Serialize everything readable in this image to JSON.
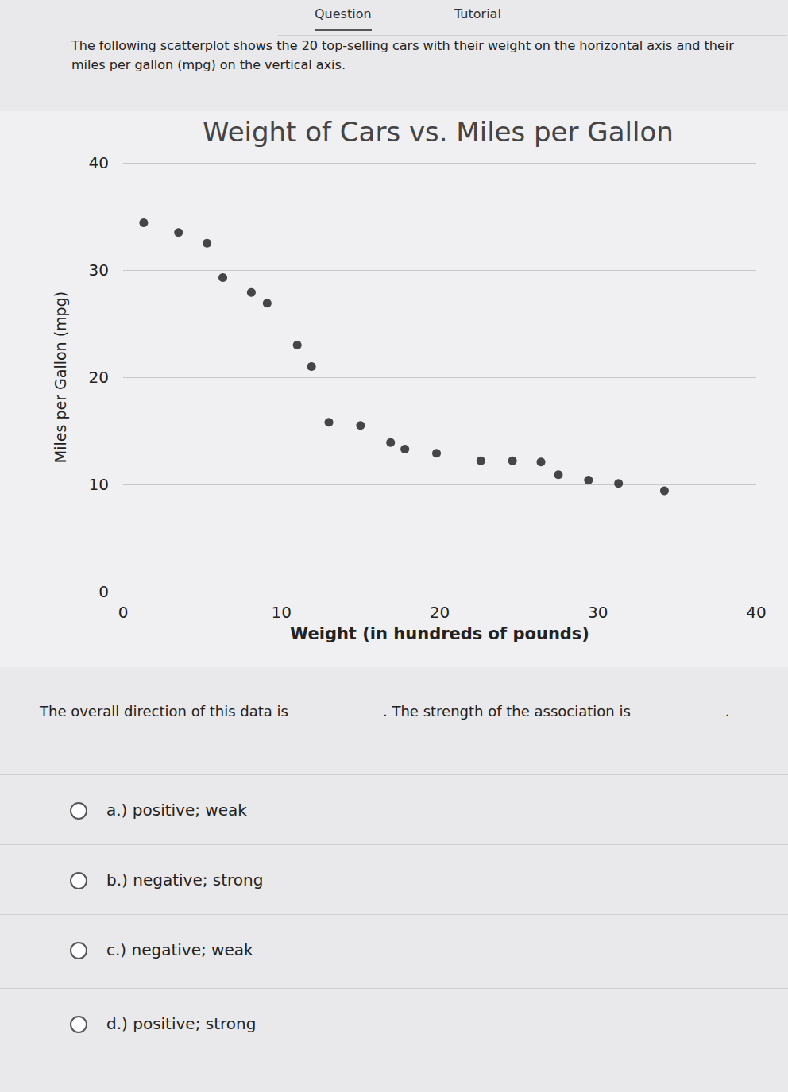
{
  "tabs": [
    "Question",
    "Tutorial"
  ],
  "intro": "The following scatterplot shows the 20 top-selling cars with their weight on the horizontal axis and their miles per gallon (mpg) on the vertical axis.",
  "chart_data": {
    "type": "scatter",
    "title": "Weight of Cars vs. Miles per Gallon",
    "x_label": "Weight (in hundreds of pounds)",
    "y_label": "Miles per Gallon (mpg)",
    "x": [
      1.3,
      3.5,
      5.3,
      6.3,
      8.1,
      9.1,
      11.0,
      11.9,
      13.0,
      15.0,
      16.9,
      17.8,
      19.8,
      22.6,
      24.6,
      26.4,
      27.5,
      29.4,
      31.3,
      34.2
    ],
    "values": [
      34.4,
      33.5,
      32.5,
      29.3,
      27.9,
      26.9,
      23.0,
      21.0,
      15.8,
      15.5,
      13.9,
      13.3,
      12.9,
      12.2,
      12.2,
      12.1,
      10.9,
      10.4,
      10.1,
      9.4
    ],
    "color": "#1a1a1a",
    "marker": "circle",
    "xlim": [
      0,
      40
    ],
    "xticks": [
      0,
      10,
      20,
      30,
      40
    ],
    "ylim": [
      0,
      40
    ],
    "yticks": [
      0,
      10,
      20,
      30,
      40
    ],
    "grid": true
  },
  "prompt": [
    "The overall direction of this data is",
    ". The strength of the association is",
    "."
  ],
  "options": [
    "a.) positive; weak",
    "b.) negative; strong",
    "c.) negative; weak",
    "d.) positive; strong"
  ]
}
